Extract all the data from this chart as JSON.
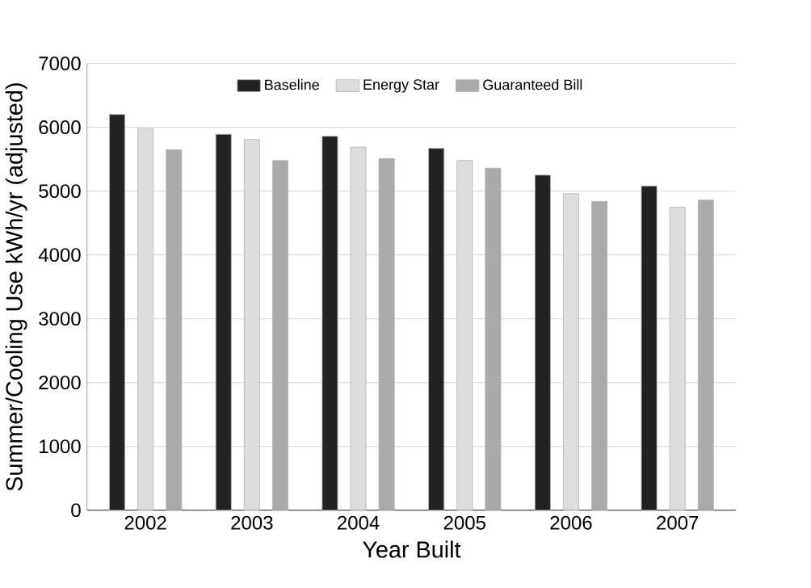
{
  "chart_data": {
    "type": "bar",
    "xlabel": "Year Built",
    "ylabel": "Summer/Cooling Use kWh/yr (adjusted)",
    "categories": [
      "2002",
      "2003",
      "2004",
      "2005",
      "2006",
      "2007"
    ],
    "series": [
      {
        "name": "Baseline",
        "color": "#222222",
        "values": [
          6200,
          5890,
          5860,
          5670,
          5250,
          5080
        ]
      },
      {
        "name": "Energy Star",
        "color": "#dddddd",
        "values": [
          5980,
          5810,
          5690,
          5480,
          4960,
          4750
        ]
      },
      {
        "name": "Guaranteed Bill",
        "color": "#aaaaaa",
        "values": [
          5650,
          5480,
          5510,
          5360,
          4840,
          4860
        ]
      }
    ],
    "ylim": [
      0,
      7000
    ],
    "yticks": [
      0,
      1000,
      2000,
      3000,
      4000,
      5000,
      6000,
      7000
    ],
    "grid": "y",
    "legend": "top"
  }
}
